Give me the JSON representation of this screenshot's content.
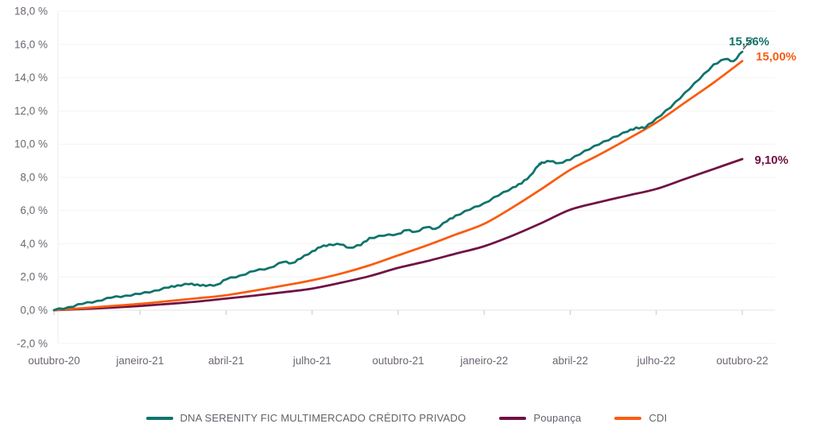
{
  "page": {
    "background": "#ffffff"
  },
  "colors": {
    "axis_label": "#6d6570",
    "legend_label": "#62626a",
    "grid_line": "#f4f4f4",
    "axis_line": "#e3e3e3",
    "y_axis_line": "#ededed",
    "tick": "#cfcfcf",
    "leader_line": "#3f3f3f"
  },
  "chart_data": {
    "type": "line",
    "title": "",
    "xlabel": "",
    "ylabel": "",
    "grid": "horizontal-only",
    "legend_position": "bottom-center",
    "y_axis": {
      "min": -2,
      "max": 18,
      "step": 2,
      "unit": "%"
    },
    "y_tick_labels": [
      "18,0 %",
      "16,0 %",
      "14,0 %",
      "12,0 %",
      "10,0 %",
      "8,0 %",
      "6,0 %",
      "4,0 %",
      "2,0 %",
      "0,0 %",
      "-2,0 %"
    ],
    "x_tick_labels": [
      "outubro-20",
      "janeiro-21",
      "abril-21",
      "julho-21",
      "outubro-21",
      "janeiro-22",
      "abril-22",
      "julho-22",
      "outubro-22"
    ],
    "x_months_span": 24,
    "series": [
      {
        "name": "DNA SERENITY FIC MULTIMERCADO CRÉDITO PRIVADO",
        "color": "#0f746c",
        "end_label": "15,56%",
        "final_value": 15.56,
        "style": "noisy",
        "points": [
          [
            0,
            0
          ],
          [
            0.5,
            0.18
          ],
          [
            1,
            0.38
          ],
          [
            1.5,
            0.56
          ],
          [
            2,
            0.75
          ],
          [
            2.5,
            0.88
          ],
          [
            3,
            0.97
          ],
          [
            3.5,
            1.18
          ],
          [
            4,
            1.36
          ],
          [
            4.3,
            1.5
          ],
          [
            4.7,
            1.56
          ],
          [
            5,
            1.55
          ],
          [
            5.3,
            1.45
          ],
          [
            5.7,
            1.55
          ],
          [
            6,
            1.85
          ],
          [
            6.5,
            2.1
          ],
          [
            7,
            2.36
          ],
          [
            7.5,
            2.55
          ],
          [
            8,
            2.9
          ],
          [
            8.3,
            2.84
          ],
          [
            8.6,
            3.1
          ],
          [
            9,
            3.55
          ],
          [
            9.3,
            3.8
          ],
          [
            9.6,
            3.96
          ],
          [
            10,
            3.95
          ],
          [
            10.3,
            3.76
          ],
          [
            10.7,
            3.92
          ],
          [
            11,
            4.35
          ],
          [
            11.5,
            4.48
          ],
          [
            12,
            4.6
          ],
          [
            12.3,
            4.82
          ],
          [
            12.6,
            4.72
          ],
          [
            13,
            5.0
          ],
          [
            13.3,
            4.9
          ],
          [
            13.7,
            5.35
          ],
          [
            14,
            5.7
          ],
          [
            14.5,
            6.05
          ],
          [
            15,
            6.45
          ],
          [
            15.5,
            6.9
          ],
          [
            16,
            7.4
          ],
          [
            16.3,
            7.62
          ],
          [
            16.6,
            8.1
          ],
          [
            16.9,
            8.72
          ],
          [
            17,
            8.9
          ],
          [
            17.3,
            8.96
          ],
          [
            17.6,
            8.86
          ],
          [
            18,
            9.05
          ],
          [
            18.5,
            9.6
          ],
          [
            19,
            9.97
          ],
          [
            19.5,
            10.42
          ],
          [
            20,
            10.75
          ],
          [
            20.3,
            11.0
          ],
          [
            20.6,
            10.96
          ],
          [
            21,
            11.55
          ],
          [
            21.5,
            12.2
          ],
          [
            22,
            13.1
          ],
          [
            22.5,
            13.9
          ],
          [
            23,
            14.8
          ],
          [
            23.4,
            15.12
          ],
          [
            23.7,
            15.0
          ],
          [
            24,
            15.56
          ]
        ]
      },
      {
        "name": "Poupança",
        "color": "#701245",
        "end_label": "9,10%",
        "final_value": 9.1,
        "style": "smooth",
        "points": [
          [
            0,
            0
          ],
          [
            1,
            0.07
          ],
          [
            2,
            0.15
          ],
          [
            3,
            0.25
          ],
          [
            4,
            0.38
          ],
          [
            5,
            0.52
          ],
          [
            6,
            0.7
          ],
          [
            7,
            0.88
          ],
          [
            8,
            1.08
          ],
          [
            9,
            1.3
          ],
          [
            10,
            1.65
          ],
          [
            11,
            2.05
          ],
          [
            12,
            2.55
          ],
          [
            13,
            2.95
          ],
          [
            14,
            3.4
          ],
          [
            15,
            3.85
          ],
          [
            16,
            4.5
          ],
          [
            17,
            5.25
          ],
          [
            18,
            6.05
          ],
          [
            19,
            6.5
          ],
          [
            20,
            6.9
          ],
          [
            21,
            7.3
          ],
          [
            22,
            7.9
          ],
          [
            23,
            8.5
          ],
          [
            24,
            9.1
          ]
        ]
      },
      {
        "name": "CDI",
        "color": "#f95c10",
        "end_label": "15,00%",
        "final_value": 15.0,
        "style": "smooth",
        "points": [
          [
            0,
            0
          ],
          [
            1,
            0.12
          ],
          [
            2,
            0.25
          ],
          [
            3,
            0.38
          ],
          [
            4,
            0.55
          ],
          [
            5,
            0.72
          ],
          [
            6,
            0.9
          ],
          [
            7,
            1.18
          ],
          [
            8,
            1.48
          ],
          [
            9,
            1.8
          ],
          [
            10,
            2.2
          ],
          [
            11,
            2.7
          ],
          [
            12,
            3.3
          ],
          [
            13,
            3.9
          ],
          [
            14,
            4.55
          ],
          [
            15,
            5.2
          ],
          [
            16,
            6.2
          ],
          [
            17,
            7.3
          ],
          [
            18,
            8.45
          ],
          [
            19,
            9.35
          ],
          [
            20,
            10.3
          ],
          [
            21,
            11.3
          ],
          [
            22,
            12.5
          ],
          [
            23,
            13.7
          ],
          [
            24,
            15.0
          ]
        ]
      }
    ]
  }
}
